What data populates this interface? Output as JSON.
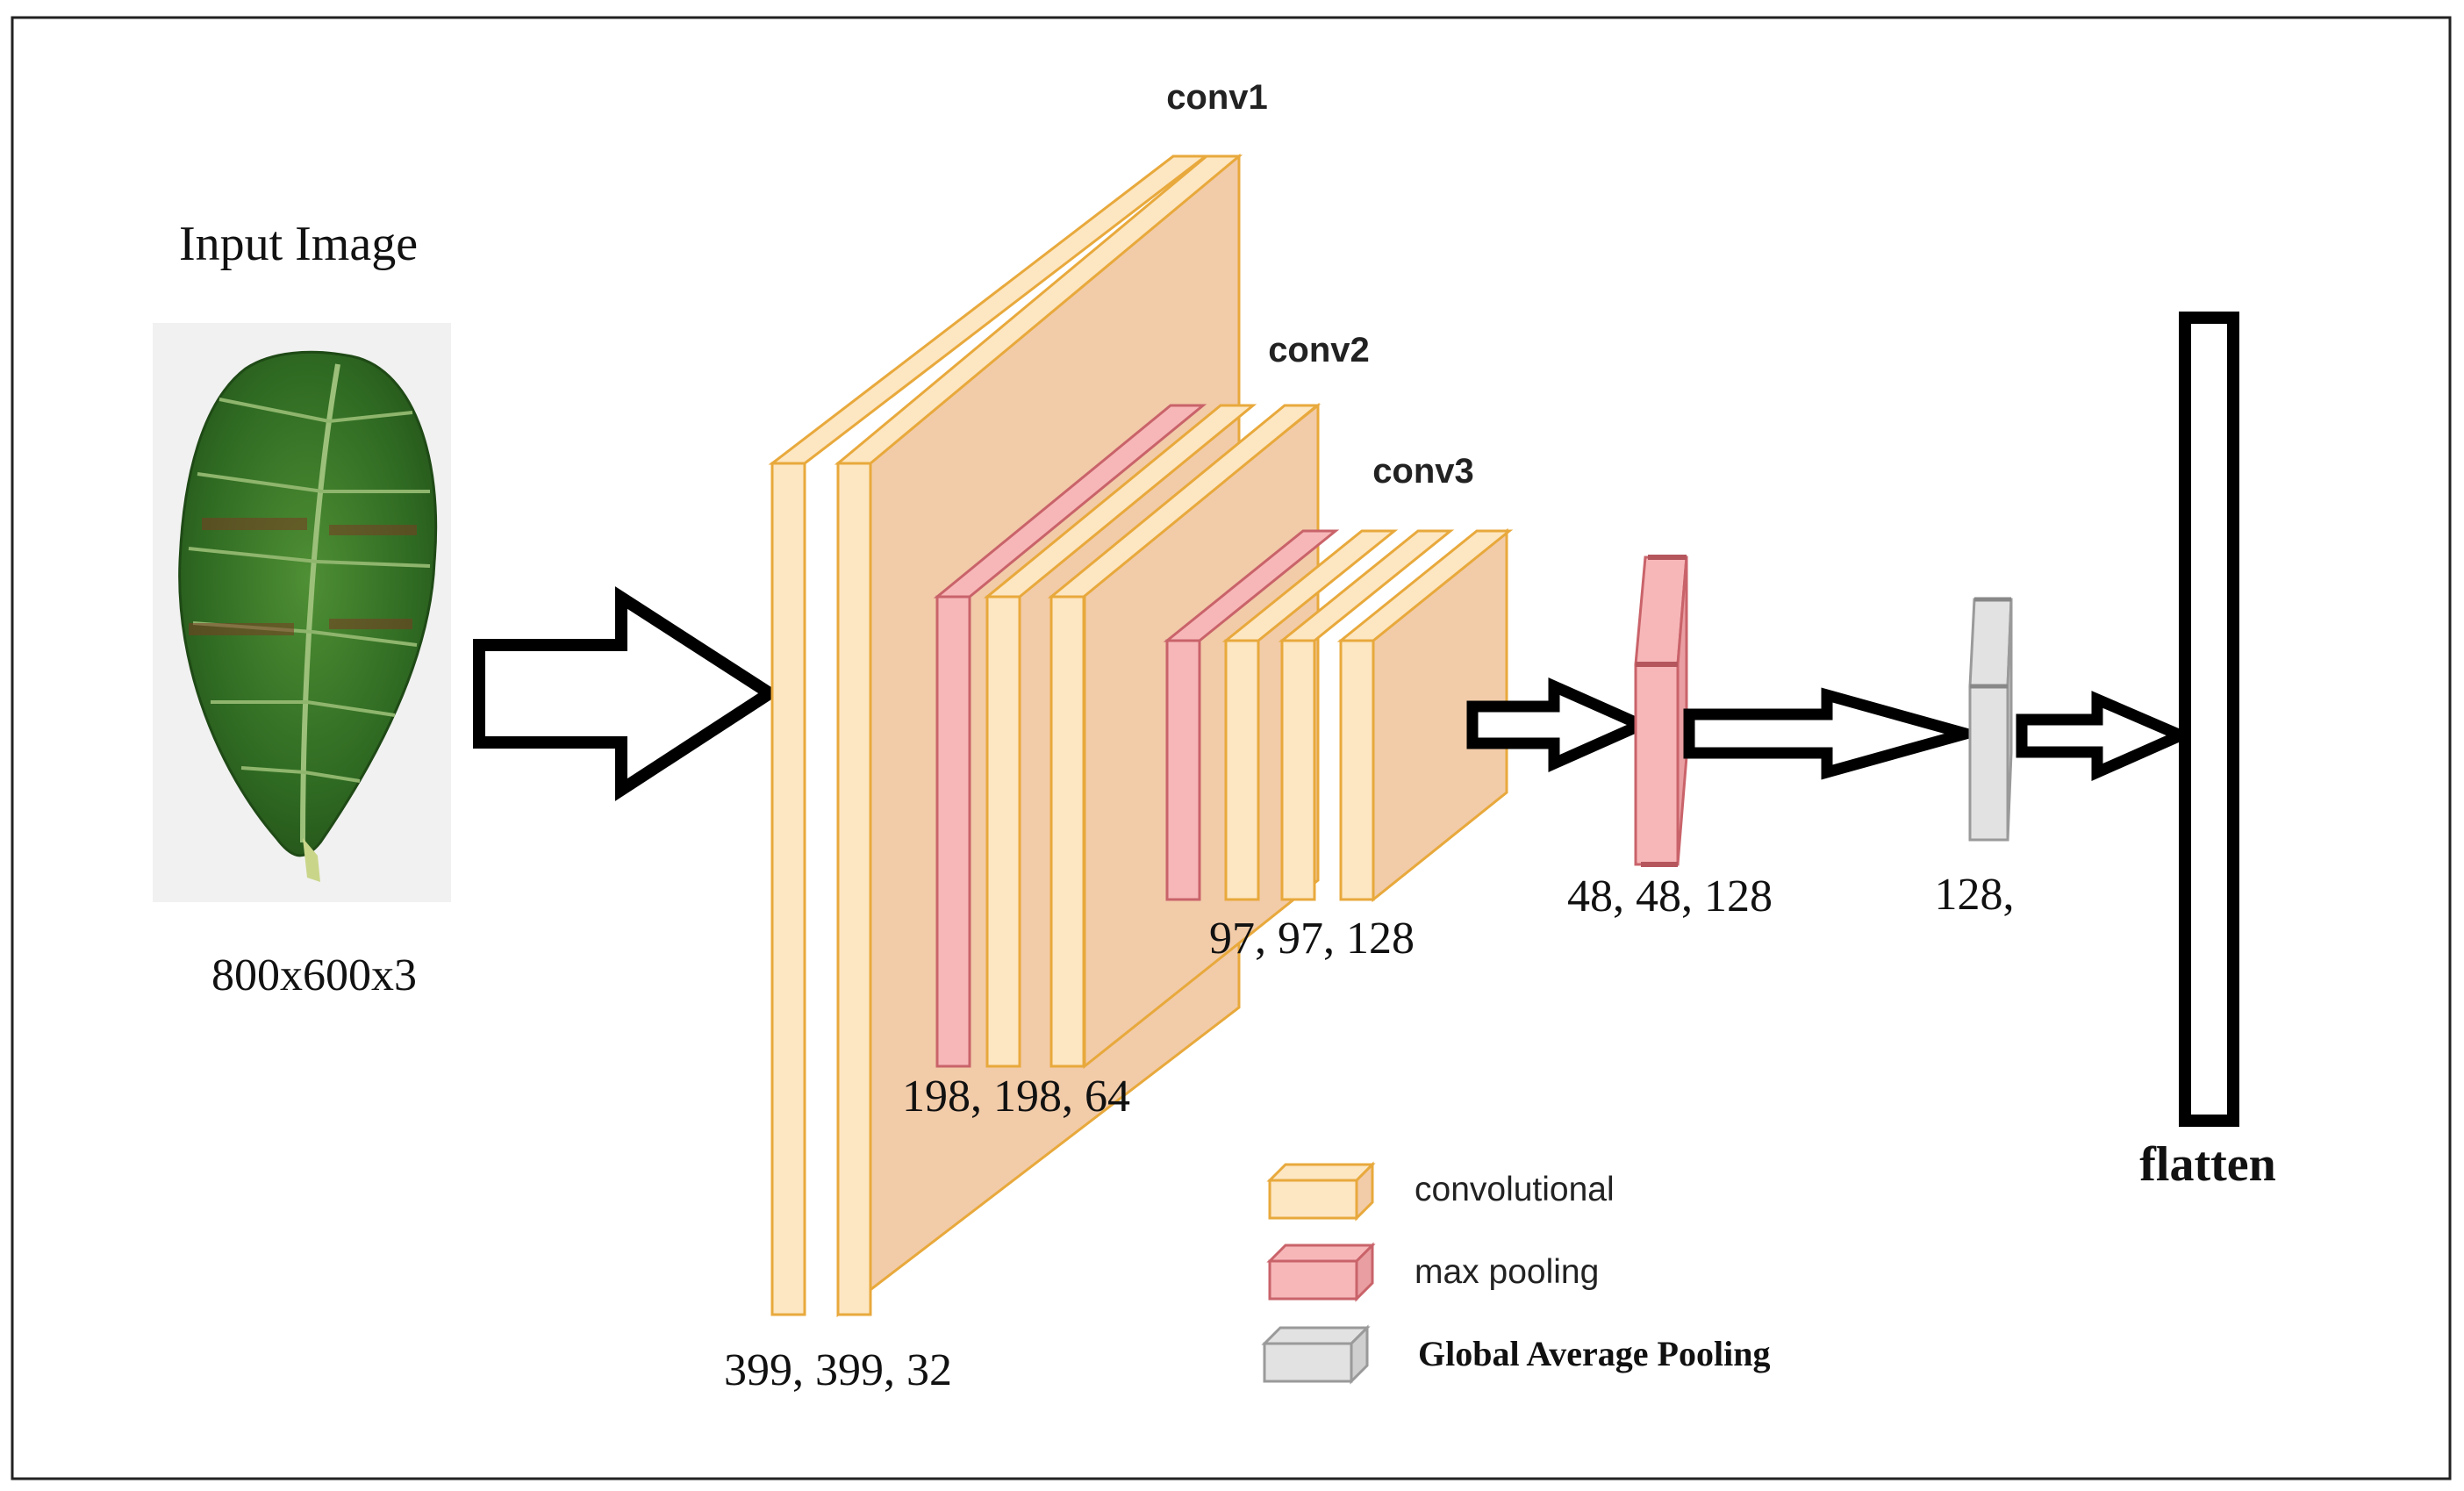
{
  "colors": {
    "conv_face": "#f2cba9",
    "conv_slab": "#fde6c2",
    "conv_edge": "#e8a93c",
    "pool_face": "#f7b7b8",
    "pool_edge": "#c9636a",
    "gap_face": "#e2e2e2",
    "gap_edge": "#9a9a9a",
    "leaf": "#3e7a2a"
  },
  "input": {
    "title": "Input Image",
    "dims": "800x600x3",
    "image_icon": "leaf-image"
  },
  "layers": {
    "conv1": {
      "label": "conv1",
      "dims": "399, 399, 32"
    },
    "conv2": {
      "label": "conv2",
      "dims": "198, 198, 64"
    },
    "conv3": {
      "label": "conv3",
      "dims": "97, 97, 128"
    },
    "pool": {
      "dims": "48, 48, 128"
    },
    "gap": {
      "dims": "128,"
    },
    "flatten": {
      "label": "flatten"
    }
  },
  "legend": {
    "items": [
      {
        "label": "convolutional",
        "kind": "conv"
      },
      {
        "label": "max pooling",
        "kind": "pool"
      },
      {
        "label": "Global Average Pooling",
        "kind": "gap"
      }
    ]
  }
}
